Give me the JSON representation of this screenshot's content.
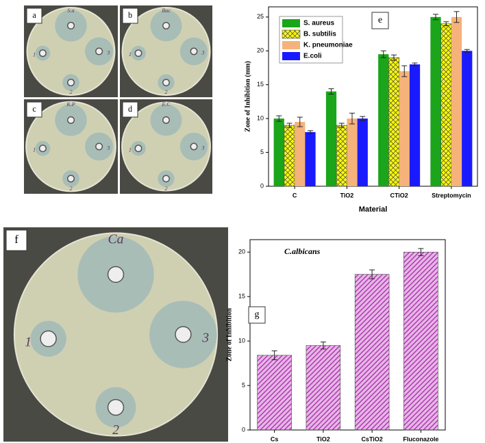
{
  "photo_panels": [
    {
      "label": "a",
      "plate": "S.a",
      "wells": [
        "1",
        "2",
        "3"
      ]
    },
    {
      "label": "b",
      "plate": "Bac",
      "wells": [
        "1",
        "2",
        "3"
      ]
    },
    {
      "label": "c",
      "plate": "K.P",
      "wells": [
        "1",
        "2",
        "3"
      ]
    },
    {
      "label": "d",
      "plate": "E.C",
      "wells": [
        "1",
        "2",
        "3"
      ]
    },
    {
      "label": "f",
      "plate": "Ca",
      "wells": [
        "1",
        "2",
        "3"
      ]
    }
  ],
  "chart_data": [
    {
      "type": "bar",
      "panel_label": "e",
      "xlabel": "Material",
      "ylabel": "Zone of Inhibition (mm)",
      "categories": [
        "C",
        "TiO2",
        "CTiO2",
        "Streptomycin"
      ],
      "series": [
        {
          "name": "S. aureus",
          "color": "#1aa51a",
          "values": [
            10,
            14,
            19.5,
            25
          ],
          "errors": [
            0.4,
            0.4,
            0.5,
            0.4
          ]
        },
        {
          "name": "B. subtilis",
          "color": "#ffff00",
          "hatch": "cross",
          "values": [
            9,
            9,
            19,
            24
          ],
          "errors": [
            0.3,
            0.3,
            0.4,
            0.3
          ]
        },
        {
          "name": "K. pneumoniae",
          "color": "#f5b27a",
          "values": [
            9.5,
            10,
            17,
            25
          ],
          "errors": [
            0.7,
            0.8,
            0.8,
            0.8
          ]
        },
        {
          "name": "E.coli",
          "color": "#1a1aff",
          "values": [
            8,
            10,
            18,
            20
          ],
          "errors": [
            0.2,
            0.3,
            0.2,
            0.2
          ]
        }
      ],
      "ylim": [
        0,
        26.5
      ],
      "yticks": [
        0,
        5,
        10,
        15,
        20,
        25
      ],
      "legend": "upper left"
    },
    {
      "type": "bar",
      "panel_label": "g",
      "title": "C.albicans",
      "ylabel": "Zone of Inhibition",
      "categories": [
        "Cs",
        "TiO2",
        "CsTiO2",
        "Fluconazole"
      ],
      "values": [
        8.4,
        9.5,
        17.5,
        20
      ],
      "errors": [
        0.5,
        0.4,
        0.5,
        0.4
      ],
      "color": "#b030b0",
      "hatch": "diagonal",
      "ylim": [
        0,
        21.4
      ],
      "yticks": [
        0,
        5,
        10,
        15,
        20
      ]
    }
  ]
}
